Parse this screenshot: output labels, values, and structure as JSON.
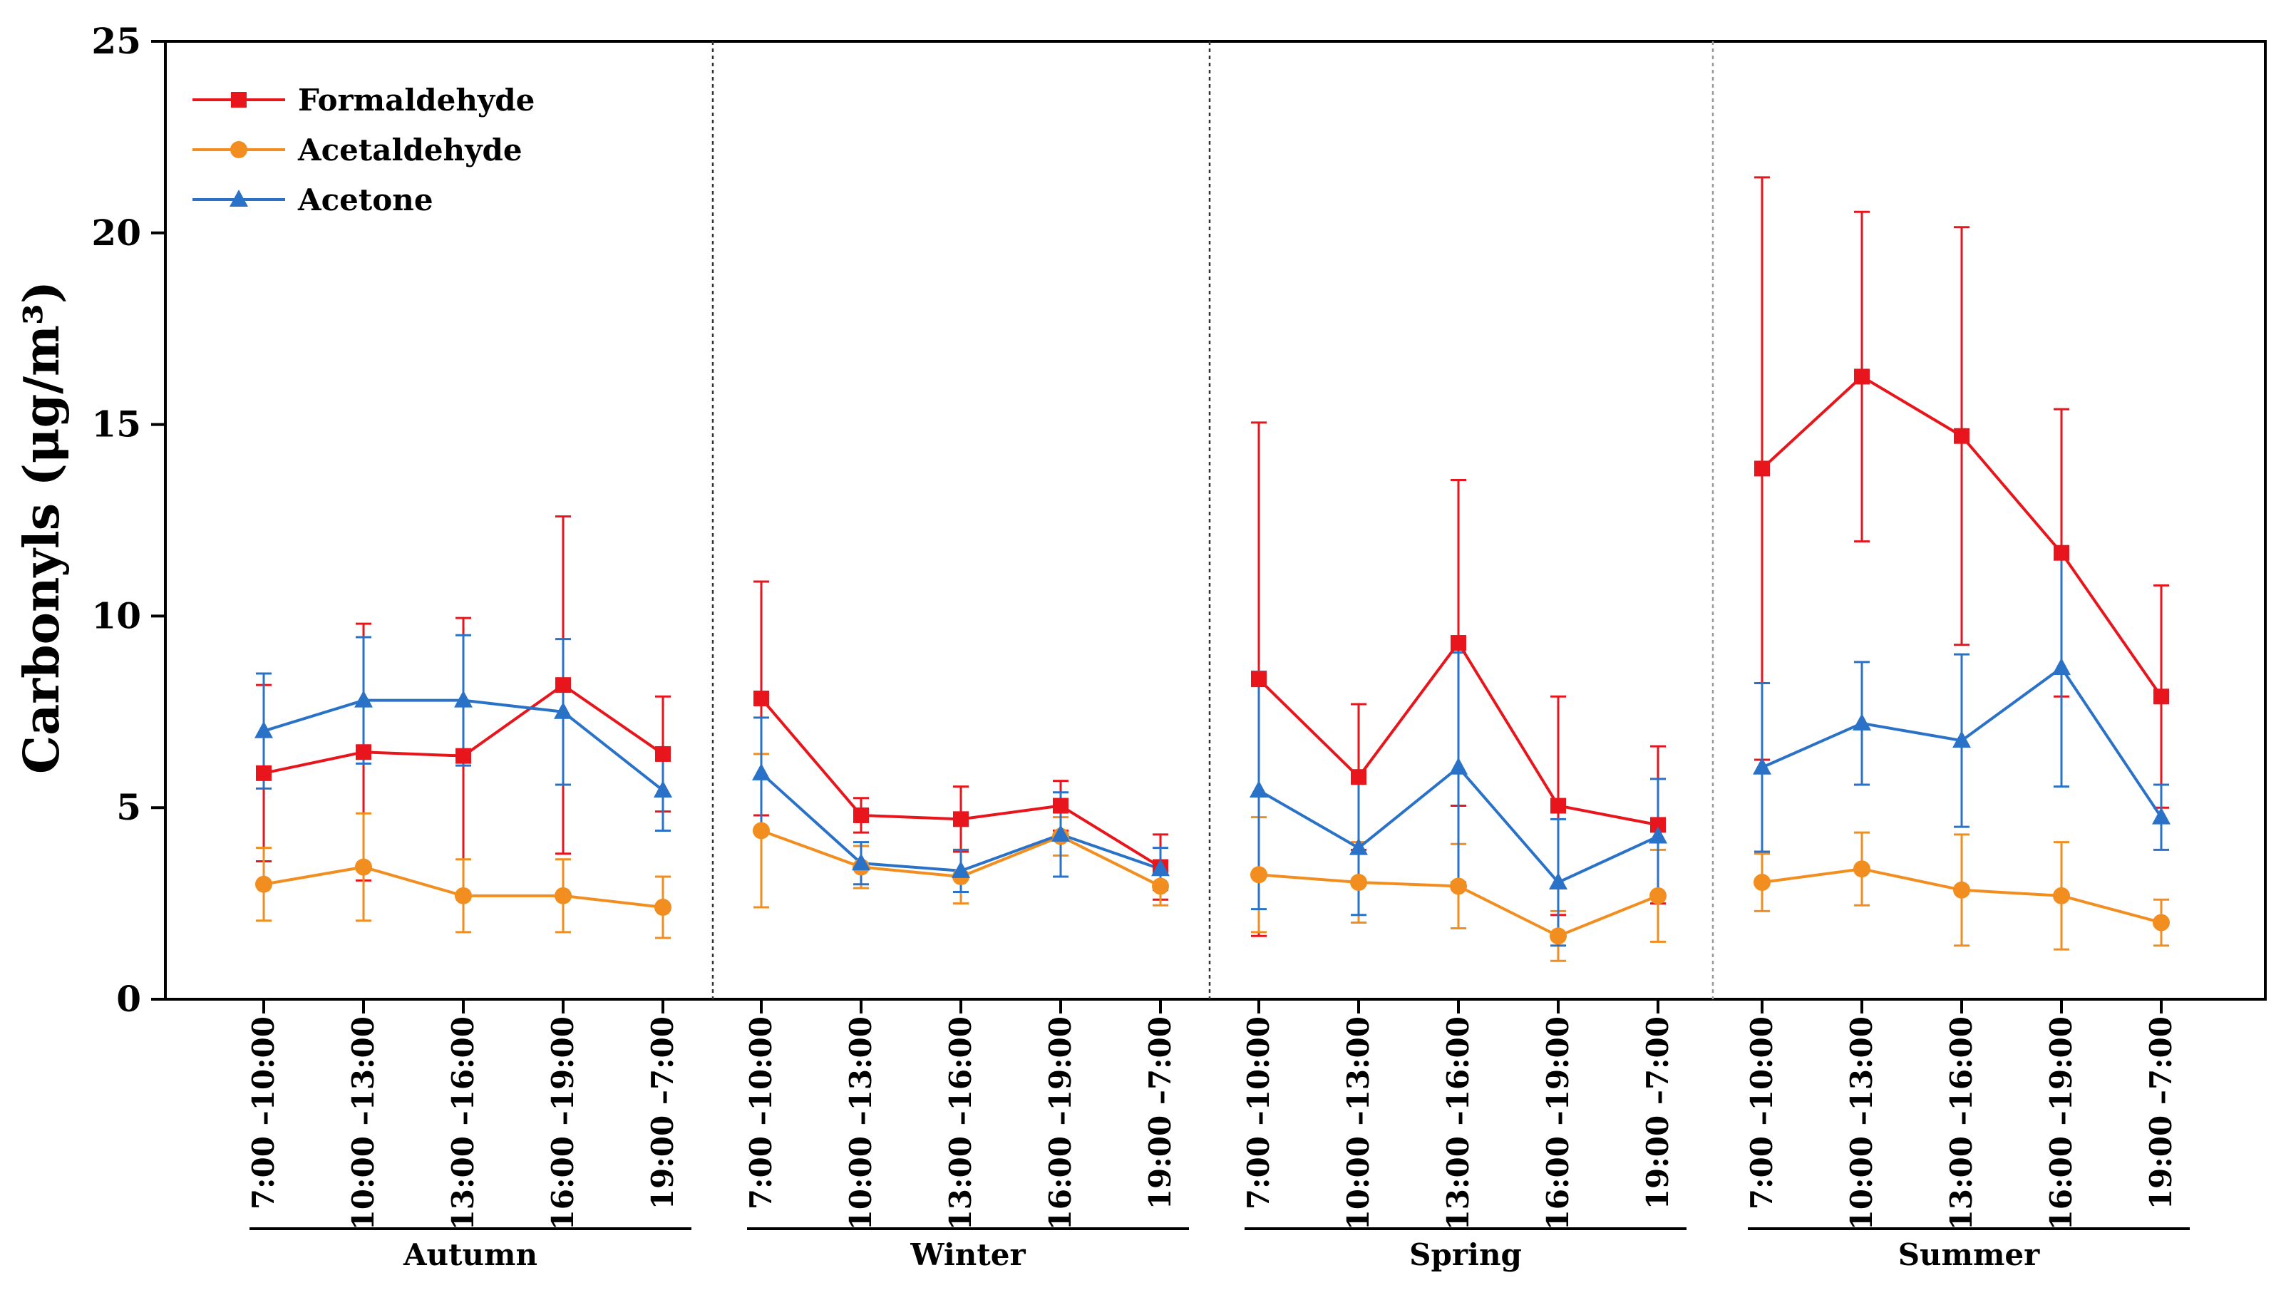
{
  "chart_data": {
    "type": "line",
    "title": "",
    "xlabel": "",
    "ylabel": "Carbonyls (μg/m³)",
    "ylim": [
      0,
      25
    ],
    "yticks": [
      0,
      5,
      10,
      15,
      20,
      25
    ],
    "seasons": [
      "Autumn",
      "Winter",
      "Spring",
      "Summer"
    ],
    "time_slots": [
      "7:00 –10:00",
      "10:00 –13:00",
      "13:00 –16:00",
      "16:00 –19:00",
      "19:00 –7:00"
    ],
    "legend_position": "top-left",
    "series": [
      {
        "name": "Formaldehyde",
        "color": "#e8161c",
        "marker": "square",
        "values": [
          [
            5.9,
            6.45,
            6.35,
            8.2,
            6.4
          ],
          [
            7.85,
            4.8,
            4.7,
            5.05,
            3.45
          ],
          [
            8.35,
            5.8,
            9.3,
            5.05,
            4.55
          ],
          [
            13.85,
            16.25,
            14.7,
            11.65,
            7.9
          ]
        ],
        "errors": [
          [
            2.3,
            3.35,
            3.6,
            4.4,
            1.5
          ],
          [
            3.05,
            0.45,
            0.85,
            0.65,
            0.85
          ],
          [
            6.7,
            1.9,
            4.25,
            2.85,
            2.05
          ],
          [
            7.6,
            4.3,
            5.45,
            3.75,
            2.9
          ]
        ]
      },
      {
        "name": "Acetaldehyde",
        "color": "#f28e1f",
        "marker": "circle",
        "values": [
          [
            3.0,
            3.45,
            2.7,
            2.7,
            2.4
          ],
          [
            4.4,
            3.45,
            3.2,
            4.25,
            2.95
          ],
          [
            3.25,
            3.05,
            2.95,
            1.65,
            2.7
          ],
          [
            3.05,
            3.4,
            2.85,
            2.7,
            2.0
          ]
        ],
        "errors": [
          [
            0.95,
            1.4,
            0.95,
            0.95,
            0.8
          ],
          [
            2.0,
            0.55,
            0.7,
            0.5,
            0.5
          ],
          [
            1.5,
            1.05,
            1.1,
            0.65,
            1.2
          ],
          [
            0.75,
            0.95,
            1.45,
            1.4,
            0.6
          ]
        ]
      },
      {
        "name": "Acetone",
        "color": "#2a72c8",
        "marker": "triangle",
        "values": [
          [
            7.0,
            7.8,
            7.8,
            7.5,
            5.45
          ],
          [
            5.9,
            3.55,
            3.35,
            4.3,
            3.4
          ],
          [
            5.45,
            3.95,
            6.05,
            3.05,
            4.25
          ],
          [
            6.05,
            7.2,
            6.75,
            8.65,
            4.75
          ]
        ],
        "errors": [
          [
            1.5,
            1.65,
            1.7,
            1.9,
            1.05
          ],
          [
            1.45,
            0.55,
            0.55,
            1.1,
            0.55
          ],
          [
            3.1,
            1.75,
            3.0,
            1.65,
            1.5
          ],
          [
            2.2,
            1.6,
            2.25,
            3.1,
            0.85
          ]
        ]
      }
    ]
  }
}
